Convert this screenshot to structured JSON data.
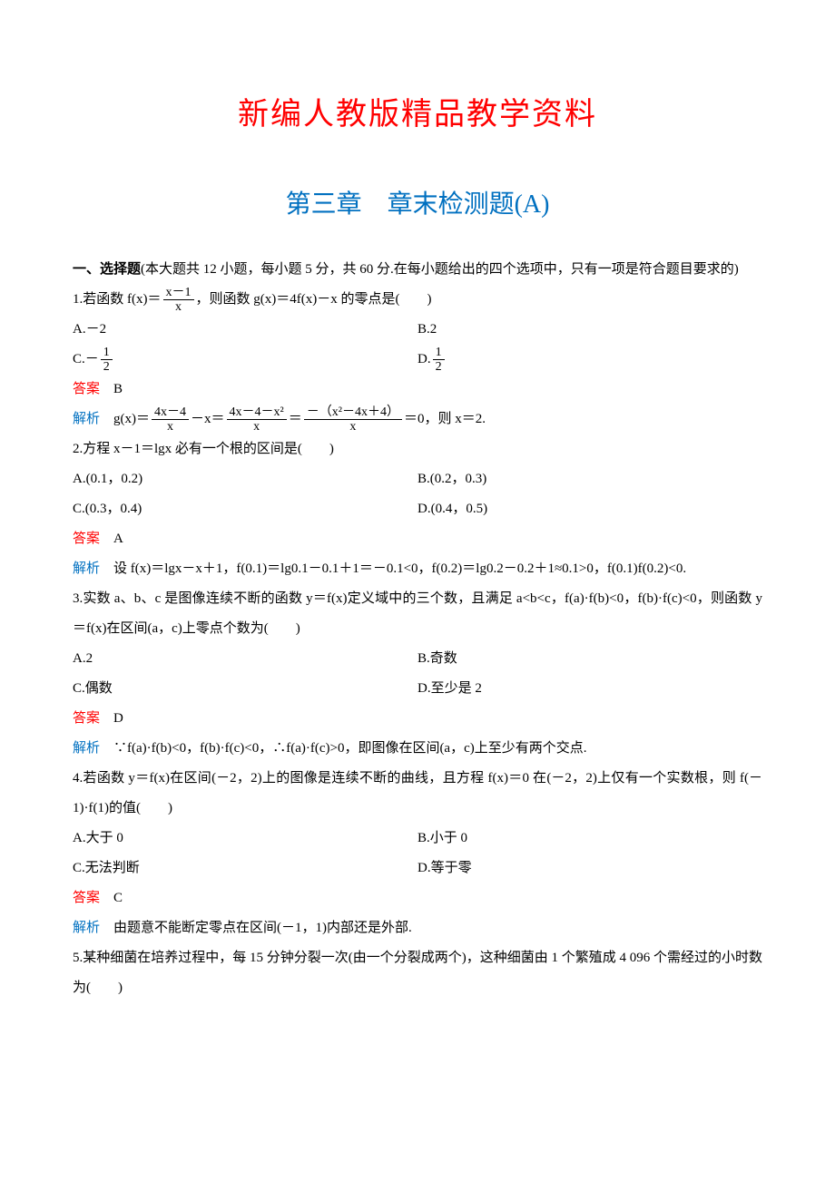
{
  "doc_title": "新编人教版精品教学资料",
  "chapter_title": "第三章　章末检测题(A)",
  "section_intro_bold": "一、选择题",
  "section_intro_rest": "(本大题共 12 小题，每小题 5 分，共 60 分.在每小题给出的四个选项中，只有一项是符合题目要求的)",
  "colors": {
    "title": "#ff0000",
    "chapter": "#0070c0",
    "answer_label": "#ff0000",
    "analysis_label": "#0070c0",
    "text": "#000000",
    "background": "#ffffff"
  },
  "font_sizes": {
    "title": 34,
    "chapter": 28,
    "body": 15
  },
  "labels": {
    "answer": "答案",
    "analysis": "解析"
  },
  "questions": [
    {
      "num": "1",
      "stem_pre": "1.若函数 f(x)＝",
      "stem_frac_num": "x－1",
      "stem_frac_den": "x",
      "stem_post": "，则函数 g(x)＝4f(x)－x 的零点是(　　)",
      "opts": {
        "A": "A.－2",
        "B": "B.2",
        "C_pre": "C.－",
        "C_frac_num": "1",
        "C_frac_den": "2",
        "D_pre": "D.",
        "D_frac_num": "1",
        "D_frac_den": "2"
      },
      "answer": "B",
      "analysis_pre": "g(x)＝",
      "analysis_f1_num": "4x－4",
      "analysis_f1_den": "x",
      "analysis_mid1": "－x＝",
      "analysis_f2_num": "4x－4－x²",
      "analysis_f2_den": "x",
      "analysis_mid2": "＝",
      "analysis_f3_num": "－（x²－4x＋4）",
      "analysis_f3_den": "x",
      "analysis_post": "＝0，则 x＝2."
    },
    {
      "num": "2",
      "stem": "2.方程 x－1＝lgx 必有一个根的区间是(　　)",
      "opts": {
        "A": "A.(0.1，0.2)",
        "B": "B.(0.2，0.3)",
        "C": "C.(0.3，0.4)",
        "D": "D.(0.4，0.5)"
      },
      "answer": "A",
      "analysis": "设 f(x)＝lgx－x＋1，f(0.1)＝lg0.1－0.1＋1＝－0.1<0，f(0.2)＝lg0.2－0.2＋1≈0.1>0，f(0.1)f(0.2)<0."
    },
    {
      "num": "3",
      "stem": "3.实数 a、b、c 是图像连续不断的函数 y＝f(x)定义域中的三个数，且满足 a<b<c，f(a)·f(b)<0，f(b)·f(c)<0，则函数 y＝f(x)在区间(a，c)上零点个数为(　　)",
      "opts": {
        "A": "A.2",
        "B": "B.奇数",
        "C": "C.偶数",
        "D": "D.至少是 2"
      },
      "answer": "D",
      "analysis": "∵f(a)·f(b)<0，f(b)·f(c)<0，∴f(a)·f(c)>0，即图像在区间(a，c)上至少有两个交点."
    },
    {
      "num": "4",
      "stem": "4.若函数 y＝f(x)在区间(－2，2)上的图像是连续不断的曲线，且方程 f(x)＝0 在(－2，2)上仅有一个实数根，则 f(－1)·f(1)的值(　　)",
      "opts": {
        "A": "A.大于 0",
        "B": "B.小于 0",
        "C": "C.无法判断",
        "D": "D.等于零"
      },
      "answer": "C",
      "analysis": "由题意不能断定零点在区间(－1，1)内部还是外部."
    },
    {
      "num": "5",
      "stem": "5.某种细菌在培养过程中，每 15 分钟分裂一次(由一个分裂成两个)，这种细菌由 1 个繁殖成 4 096 个需经过的小时数为(　　)"
    }
  ]
}
